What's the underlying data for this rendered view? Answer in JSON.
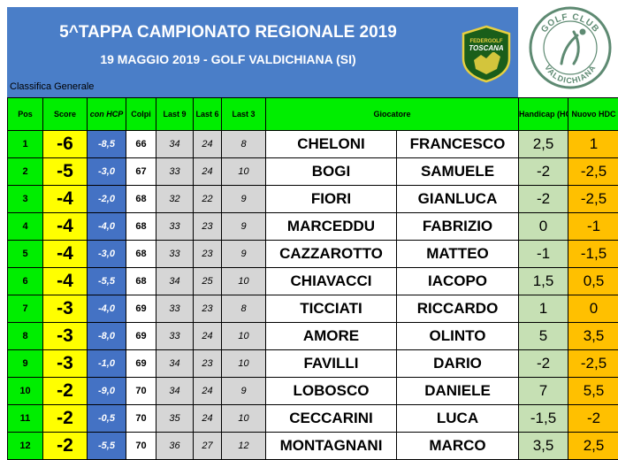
{
  "header": {
    "title": "5^TAPPA CAMPIONATO REGIONALE 2019",
    "subtitle": "19 MAGGIO 2019 - GOLF VALDICHIANA (SI)",
    "classifica": "Classifica Generale",
    "logo_left_text": "FEDERGOLF TOSCANA",
    "logo_right_text": "GOLF CLUB VALDICHIANA"
  },
  "columns": {
    "pos": "Pos",
    "score": "Score",
    "con_hcp": "con HCP",
    "colpi": "Colpi",
    "last9": "Last 9",
    "last6": "Last 6",
    "last3": "Last 3",
    "giocatore": "Giocatore",
    "handicap": "Handicap (HCP)",
    "nuovo_hdc": "Nuovo HDC"
  },
  "rows": [
    {
      "pos": "1",
      "score": "-6",
      "con_hcp": "-8,5",
      "colpi": "66",
      "last9": "34",
      "last6": "24",
      "last3": "8",
      "cognome": "CHELONI",
      "nome": "FRANCESCO",
      "handicap": "2,5",
      "nuovo": "1"
    },
    {
      "pos": "2",
      "score": "-5",
      "con_hcp": "-3,0",
      "colpi": "67",
      "last9": "33",
      "last6": "24",
      "last3": "10",
      "cognome": "BOGI",
      "nome": "SAMUELE",
      "handicap": "-2",
      "nuovo": "-2,5"
    },
    {
      "pos": "3",
      "score": "-4",
      "con_hcp": "-2,0",
      "colpi": "68",
      "last9": "32",
      "last6": "22",
      "last3": "9",
      "cognome": "FIORI",
      "nome": "GIANLUCA",
      "handicap": "-2",
      "nuovo": "-2,5"
    },
    {
      "pos": "4",
      "score": "-4",
      "con_hcp": "-4,0",
      "colpi": "68",
      "last9": "33",
      "last6": "23",
      "last3": "9",
      "cognome": "MARCEDDU",
      "nome": "FABRIZIO",
      "handicap": "0",
      "nuovo": "-1"
    },
    {
      "pos": "5",
      "score": "-4",
      "con_hcp": "-3,0",
      "colpi": "68",
      "last9": "33",
      "last6": "23",
      "last3": "9",
      "cognome": "CAZZAROTTO",
      "nome": "MATTEO",
      "handicap": "-1",
      "nuovo": "-1,5"
    },
    {
      "pos": "6",
      "score": "-4",
      "con_hcp": "-5,5",
      "colpi": "68",
      "last9": "34",
      "last6": "25",
      "last3": "10",
      "cognome": "CHIAVACCI",
      "nome": "IACOPO",
      "handicap": "1,5",
      "nuovo": "0,5"
    },
    {
      "pos": "7",
      "score": "-3",
      "con_hcp": "-4,0",
      "colpi": "69",
      "last9": "33",
      "last6": "23",
      "last3": "8",
      "cognome": "TICCIATI",
      "nome": "RICCARDO",
      "handicap": "1",
      "nuovo": "0"
    },
    {
      "pos": "8",
      "score": "-3",
      "con_hcp": "-8,0",
      "colpi": "69",
      "last9": "33",
      "last6": "24",
      "last3": "10",
      "cognome": "AMORE",
      "nome": "OLINTO",
      "handicap": "5",
      "nuovo": "3,5"
    },
    {
      "pos": "9",
      "score": "-3",
      "con_hcp": "-1,0",
      "colpi": "69",
      "last9": "34",
      "last6": "23",
      "last3": "10",
      "cognome": "FAVILLI",
      "nome": "DARIO",
      "handicap": "-2",
      "nuovo": "-2,5"
    },
    {
      "pos": "10",
      "score": "-2",
      "con_hcp": "-9,0",
      "colpi": "70",
      "last9": "34",
      "last6": "24",
      "last3": "9",
      "cognome": "LOBOSCO",
      "nome": "DANIELE",
      "handicap": "7",
      "nuovo": "5,5"
    },
    {
      "pos": "11",
      "score": "-2",
      "con_hcp": "-0,5",
      "colpi": "70",
      "last9": "35",
      "last6": "24",
      "last3": "10",
      "cognome": "CECCARINI",
      "nome": "LUCA",
      "handicap": "-1,5",
      "nuovo": "-2"
    },
    {
      "pos": "12",
      "score": "-2",
      "con_hcp": "-5,5",
      "colpi": "70",
      "last9": "36",
      "last6": "27",
      "last3": "12",
      "cognome": "MONTAGNANI",
      "nome": "MARCO",
      "handicap": "3,5",
      "nuovo": "2,5"
    }
  ]
}
